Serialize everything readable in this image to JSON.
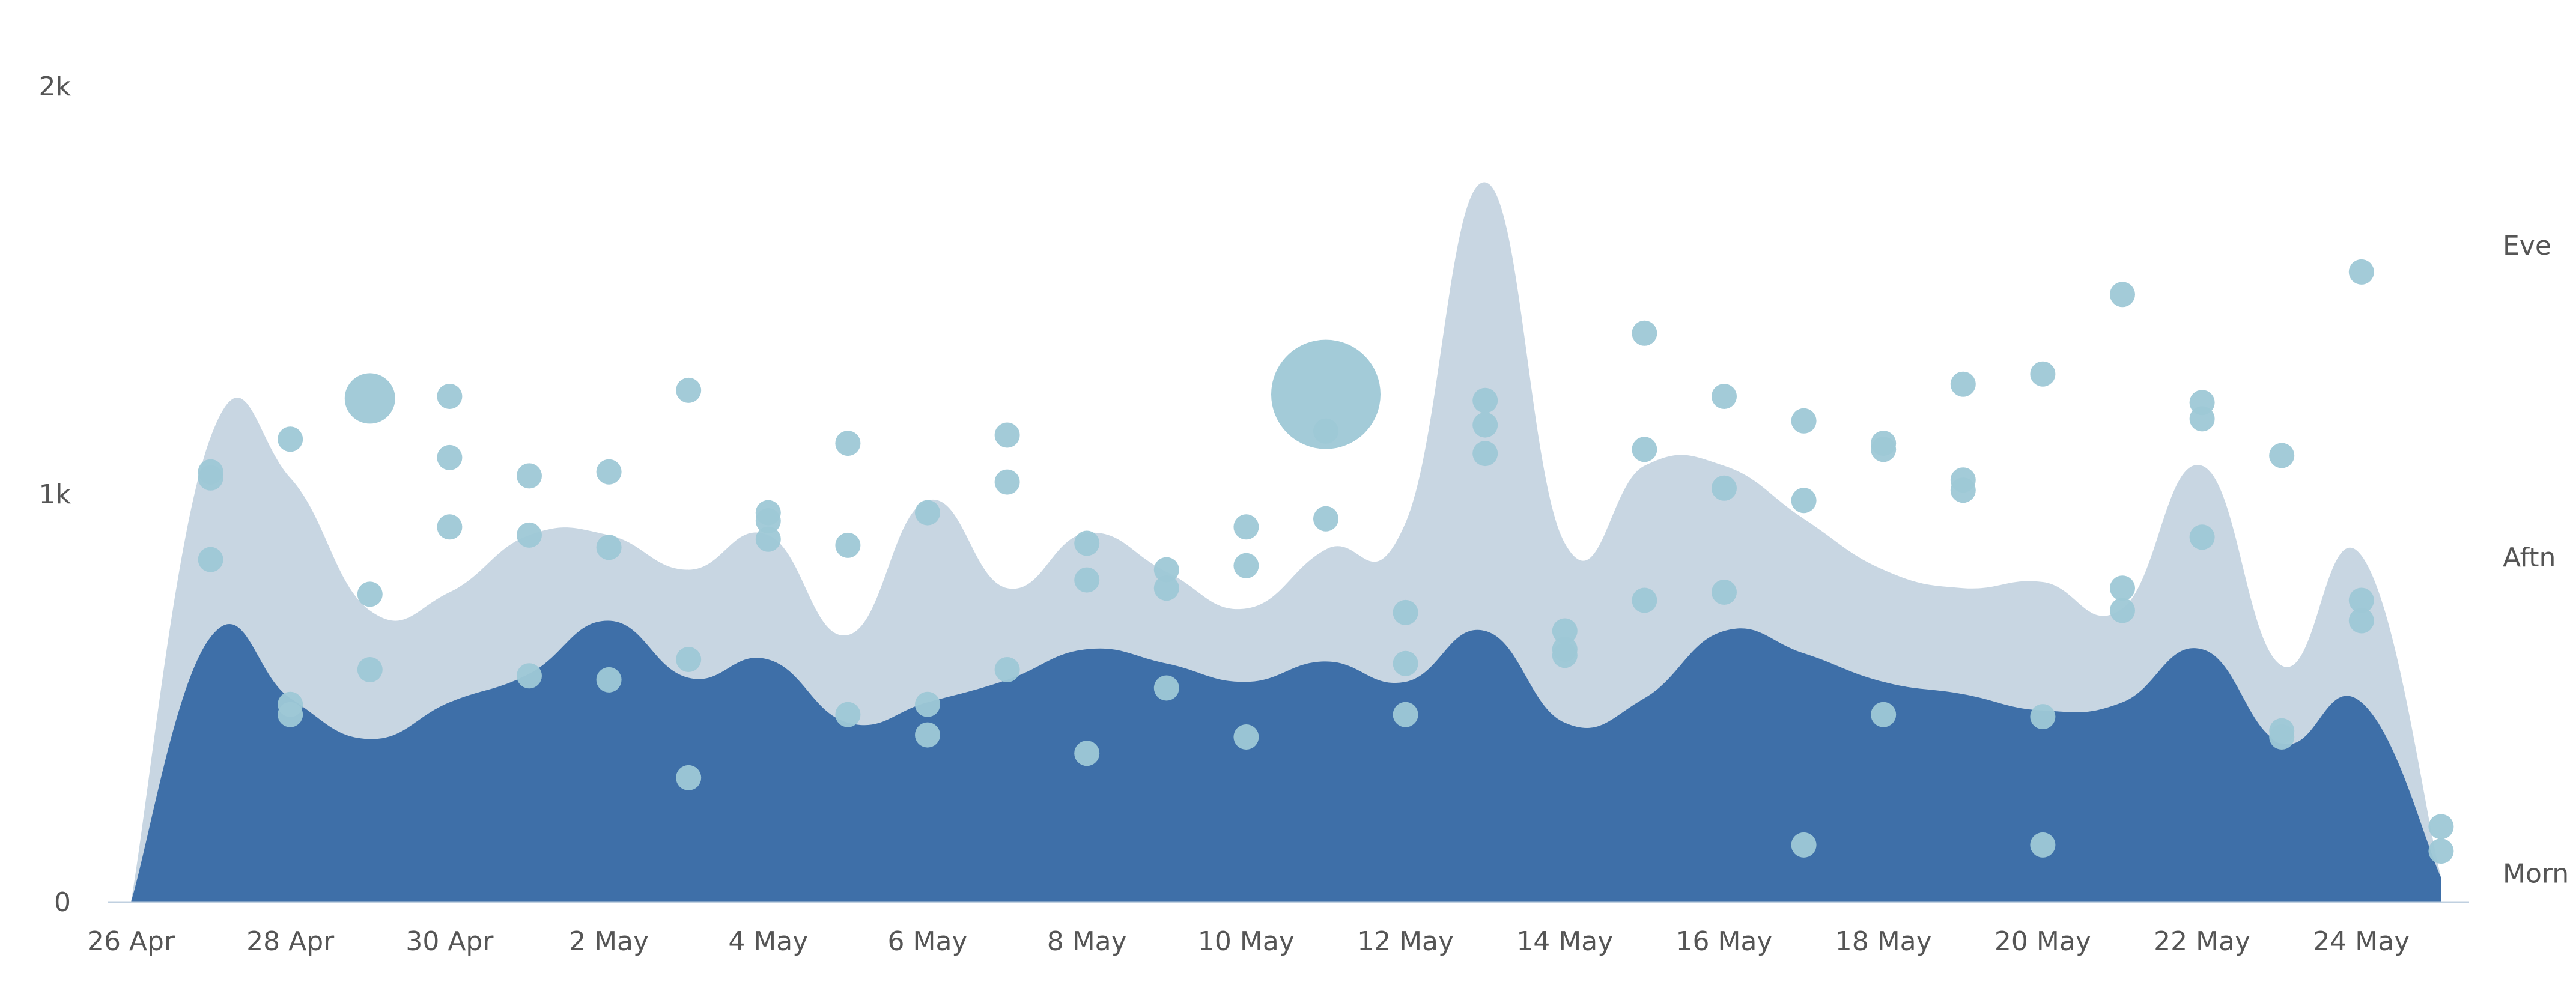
{
  "chart_data": {
    "type": "area",
    "title": "",
    "xlabel": "",
    "ylabel": "",
    "ylim": [
      0,
      2000
    ],
    "y_ticks": [
      {
        "value": 0,
        "label": "0"
      },
      {
        "value": 1000,
        "label": "1k"
      },
      {
        "value": 2000,
        "label": "2k"
      }
    ],
    "x_ticks": [
      "26 Apr",
      "28 Apr",
      "30 Apr",
      "2 May",
      "4 May",
      "6 May",
      "8 May",
      "10 May",
      "12 May",
      "14 May",
      "16 May",
      "18 May",
      "20 May",
      "22 May",
      "24 May"
    ],
    "right_labels": [
      {
        "label": "Morn",
        "value": 70
      },
      {
        "label": "Aftn",
        "value": 845
      },
      {
        "label": "Eve",
        "value": 1610
      }
    ],
    "categories": [
      "26 Apr",
      "27 Apr",
      "28 Apr",
      "29 Apr",
      "30 Apr",
      "1 May",
      "2 May",
      "3 May",
      "4 May",
      "5 May",
      "6 May",
      "7 May",
      "8 May",
      "9 May",
      "10 May",
      "11 May",
      "12 May",
      "13 May",
      "14 May",
      "15 May",
      "16 May",
      "17 May",
      "18 May",
      "19 May",
      "20 May",
      "21 May",
      "22 May",
      "23 May",
      "24 May",
      "25 May"
    ],
    "series": [
      {
        "values": [
          0,
          650,
          500,
          400,
          490,
          560,
          690,
          550,
          595,
          440,
          490,
          545,
          620,
          585,
          540,
          590,
          540,
          665,
          440,
          500,
          665,
          610,
          540,
          510,
          470,
          490,
          620,
          390,
          490,
          60
        ],
        "color": "#3e6fa8"
      },
      {
        "values": [
          0,
          1140,
          1040,
          715,
          760,
          900,
          900,
          815,
          900,
          655,
          985,
          770,
          905,
          810,
          720,
          865,
          930,
          1765,
          880,
          1070,
          1070,
          940,
          815,
          770,
          785,
          720,
          1070,
          580,
          850,
          60
        ],
        "color": "#c8d6e2"
      }
    ],
    "points": [
      {
        "x": "27 Apr",
        "y": 1055,
        "size": 6
      },
      {
        "x": "27 Apr",
        "y": 1040,
        "size": 6
      },
      {
        "x": "27 Apr",
        "y": 840,
        "size": 6
      },
      {
        "x": "28 Apr",
        "y": 1135,
        "size": 6
      },
      {
        "x": "28 Apr",
        "y": 485,
        "size": 6
      },
      {
        "x": "28 Apr",
        "y": 460,
        "size": 6
      },
      {
        "x": "29 Apr",
        "y": 1235,
        "size": 12
      },
      {
        "x": "29 Apr",
        "y": 755,
        "size": 6
      },
      {
        "x": "29 Apr",
        "y": 570,
        "size": 6
      },
      {
        "x": "30 Apr",
        "y": 1240,
        "size": 6
      },
      {
        "x": "30 Apr",
        "y": 1090,
        "size": 6
      },
      {
        "x": "30 Apr",
        "y": 920,
        "size": 6
      },
      {
        "x": "1 May",
        "y": 1045,
        "size": 6
      },
      {
        "x": "1 May",
        "y": 900,
        "size": 6
      },
      {
        "x": "1 May",
        "y": 555,
        "size": 6
      },
      {
        "x": "2 May",
        "y": 1055,
        "size": 6
      },
      {
        "x": "2 May",
        "y": 870,
        "size": 6
      },
      {
        "x": "2 May",
        "y": 545,
        "size": 6
      },
      {
        "x": "3 May",
        "y": 1255,
        "size": 6
      },
      {
        "x": "3 May",
        "y": 595,
        "size": 6
      },
      {
        "x": "3 May",
        "y": 305,
        "size": 6
      },
      {
        "x": "4 May",
        "y": 955,
        "size": 6
      },
      {
        "x": "4 May",
        "y": 935,
        "size": 6
      },
      {
        "x": "4 May",
        "y": 890,
        "size": 6
      },
      {
        "x": "5 May",
        "y": 1125,
        "size": 6
      },
      {
        "x": "5 May",
        "y": 875,
        "size": 6
      },
      {
        "x": "5 May",
        "y": 460,
        "size": 6
      },
      {
        "x": "6 May",
        "y": 955,
        "size": 6
      },
      {
        "x": "6 May",
        "y": 485,
        "size": 6
      },
      {
        "x": "6 May",
        "y": 410,
        "size": 6
      },
      {
        "x": "7 May",
        "y": 1145,
        "size": 6
      },
      {
        "x": "7 May",
        "y": 1030,
        "size": 6
      },
      {
        "x": "7 May",
        "y": 570,
        "size": 6
      },
      {
        "x": "8 May",
        "y": 880,
        "size": 6
      },
      {
        "x": "8 May",
        "y": 790,
        "size": 6
      },
      {
        "x": "8 May",
        "y": 365,
        "size": 6
      },
      {
        "x": "9 May",
        "y": 815,
        "size": 6
      },
      {
        "x": "9 May",
        "y": 770,
        "size": 6
      },
      {
        "x": "9 May",
        "y": 525,
        "size": 6
      },
      {
        "x": "10 May",
        "y": 920,
        "size": 6
      },
      {
        "x": "10 May",
        "y": 825,
        "size": 6
      },
      {
        "x": "10 May",
        "y": 405,
        "size": 6
      },
      {
        "x": "11 May",
        "y": 1245,
        "size": 26
      },
      {
        "x": "11 May",
        "y": 1155,
        "size": 6
      },
      {
        "x": "11 May",
        "y": 940,
        "size": 6
      },
      {
        "x": "12 May",
        "y": 710,
        "size": 6
      },
      {
        "x": "12 May",
        "y": 585,
        "size": 6
      },
      {
        "x": "12 May",
        "y": 460,
        "size": 6
      },
      {
        "x": "13 May",
        "y": 1230,
        "size": 6
      },
      {
        "x": "13 May",
        "y": 1170,
        "size": 6
      },
      {
        "x": "13 May",
        "y": 1100,
        "size": 6
      },
      {
        "x": "14 May",
        "y": 665,
        "size": 6
      },
      {
        "x": "14 May",
        "y": 620,
        "size": 6
      },
      {
        "x": "14 May",
        "y": 605,
        "size": 6
      },
      {
        "x": "15 May",
        "y": 1395,
        "size": 6
      },
      {
        "x": "15 May",
        "y": 1110,
        "size": 6
      },
      {
        "x": "15 May",
        "y": 740,
        "size": 6
      },
      {
        "x": "16 May",
        "y": 1240,
        "size": 6
      },
      {
        "x": "16 May",
        "y": 1015,
        "size": 6
      },
      {
        "x": "16 May",
        "y": 760,
        "size": 6
      },
      {
        "x": "17 May",
        "y": 1180,
        "size": 6
      },
      {
        "x": "17 May",
        "y": 985,
        "size": 6
      },
      {
        "x": "17 May",
        "y": 140,
        "size": 6
      },
      {
        "x": "18 May",
        "y": 1125,
        "size": 6
      },
      {
        "x": "18 May",
        "y": 1110,
        "size": 6
      },
      {
        "x": "18 May",
        "y": 460,
        "size": 6
      },
      {
        "x": "19 May",
        "y": 1270,
        "size": 6
      },
      {
        "x": "19 May",
        "y": 1035,
        "size": 6
      },
      {
        "x": "19 May",
        "y": 1010,
        "size": 6
      },
      {
        "x": "20 May",
        "y": 1295,
        "size": 6
      },
      {
        "x": "20 May",
        "y": 455,
        "size": 6
      },
      {
        "x": "20 May",
        "y": 140,
        "size": 6
      },
      {
        "x": "21 May",
        "y": 1490,
        "size": 6
      },
      {
        "x": "21 May",
        "y": 770,
        "size": 6
      },
      {
        "x": "21 May",
        "y": 715,
        "size": 6
      },
      {
        "x": "22 May",
        "y": 1225,
        "size": 6
      },
      {
        "x": "22 May",
        "y": 1185,
        "size": 6
      },
      {
        "x": "22 May",
        "y": 895,
        "size": 6
      },
      {
        "x": "23 May",
        "y": 1095,
        "size": 6
      },
      {
        "x": "23 May",
        "y": 420,
        "size": 6
      },
      {
        "x": "23 May",
        "y": 405,
        "size": 6
      },
      {
        "x": "24 May",
        "y": 1545,
        "size": 6
      },
      {
        "x": "24 May",
        "y": 740,
        "size": 6
      },
      {
        "x": "24 May",
        "y": 690,
        "size": 6
      },
      {
        "x": "25 May",
        "y": 185,
        "size": 6
      },
      {
        "x": "25 May",
        "y": 125,
        "size": 6
      }
    ],
    "point_color": "#9ec8d6",
    "axis_color": "#c0d0e0",
    "grid": false
  }
}
